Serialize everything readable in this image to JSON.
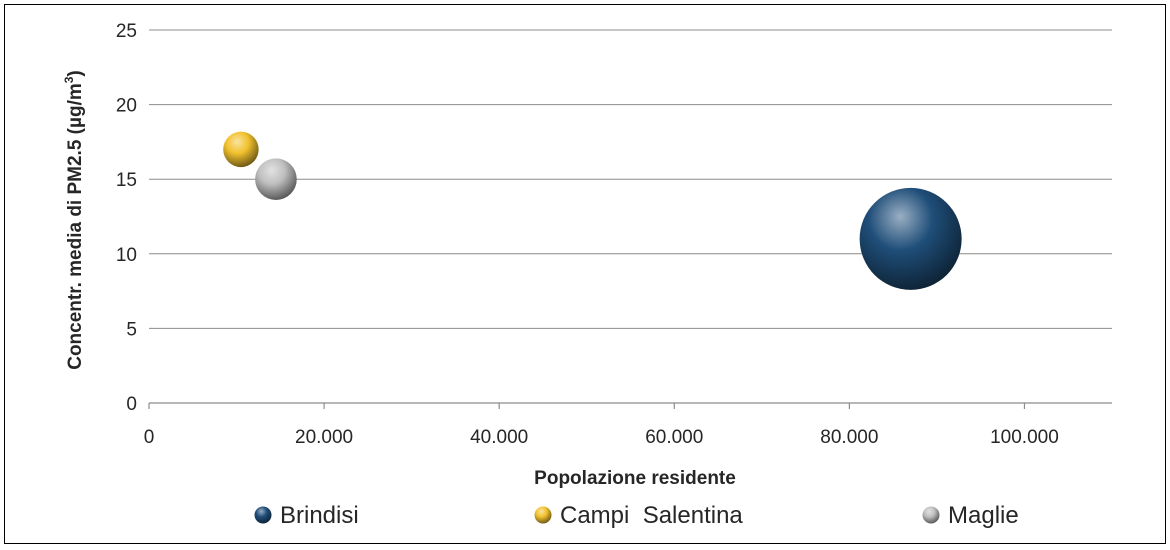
{
  "chart_data": {
    "type": "bubble",
    "title": "",
    "xlabel": "Popolazione residente",
    "ylabel": "Concentr. media di PM2.5 (µg/m³)",
    "ylabel_main": "Concentr. media di PM2.5 (µg/m",
    "ylabel_sup": "3",
    "ylabel_end": ")",
    "xlim": [
      0,
      110000
    ],
    "ylim": [
      0,
      25
    ],
    "x_ticks": [
      {
        "value": 0,
        "label": "0"
      },
      {
        "value": 20000,
        "label": "20.000"
      },
      {
        "value": 40000,
        "label": "40.000"
      },
      {
        "value": 60000,
        "label": "60.000"
      },
      {
        "value": 80000,
        "label": "80.000"
      },
      {
        "value": 100000,
        "label": "100.000"
      }
    ],
    "y_ticks": [
      {
        "value": 0,
        "label": "0"
      },
      {
        "value": 5,
        "label": "5"
      },
      {
        "value": 10,
        "label": "10"
      },
      {
        "value": 15,
        "label": "15"
      },
      {
        "value": 20,
        "label": "20"
      },
      {
        "value": 25,
        "label": "25"
      }
    ],
    "grid": "horizontal",
    "legend_position": "bottom",
    "series": [
      {
        "name": "Brindisi",
        "x": 87000,
        "y": 11,
        "size": 87000,
        "color": "#1f4e79"
      },
      {
        "name": "Campi  Salentina",
        "x": 10500,
        "y": 17,
        "size": 10500,
        "color": "#f2c12e"
      },
      {
        "name": "Maglie",
        "x": 14500,
        "y": 15,
        "size": 14500,
        "color": "#bfbfbf"
      }
    ]
  }
}
